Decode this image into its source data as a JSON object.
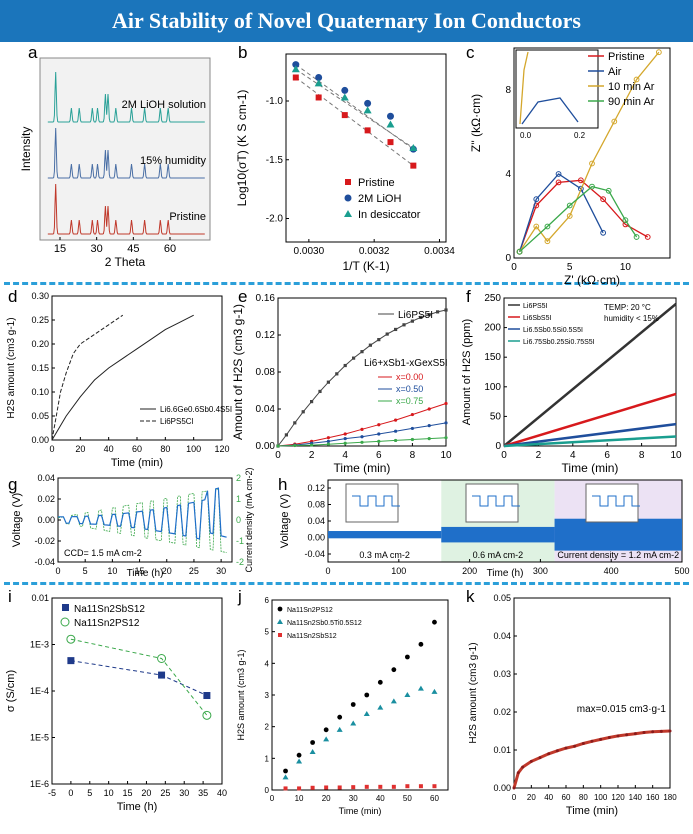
{
  "title": "Air Stability of Novel Quaternary Ion Conductors",
  "colors": {
    "banner": "#1b75bb",
    "divider": "#2b9fd9",
    "red": "#d7191c",
    "blue": "#1f4e9c",
    "teal": "#1a9e8f",
    "green": "#3aa84a",
    "gray": "#333333"
  },
  "panels": {
    "a": {
      "label": "a",
      "traces": [
        "2M LiOH solution",
        "15% humidity",
        "Pristine"
      ],
      "ylabel": "Intensity",
      "xlabel": "2 Theta",
      "xticks": [
        "15",
        "30",
        "45",
        "60"
      ]
    },
    "b": {
      "label": "b",
      "ylabel": "Log10(σT) (K S cm-1)",
      "xlabel": "1/T (K-1)",
      "xticks": [
        "0.0030",
        "0.0032",
        "0.0034"
      ],
      "yticks": [
        "-1.0",
        "-1.5",
        "-2.0"
      ],
      "legend": [
        "Pristine",
        "2M LiOH",
        "In desiccator"
      ]
    },
    "c": {
      "label": "c",
      "ylabel": "Z'' (kΩ·cm)",
      "xlabel": "Z' (kΩ·cm)",
      "xticks": [
        "0",
        "5",
        "10"
      ],
      "yticks": [
        "0",
        "4",
        "8"
      ],
      "legend": [
        "Pristine",
        "Air",
        "10 min Ar",
        "90 min Ar"
      ],
      "inset_ticks": [
        "0.0",
        "0.2"
      ]
    },
    "d": {
      "label": "d",
      "ylabel": "H2S amount (cm3 g-1)",
      "xlabel": "Time (min)",
      "xticks": [
        "0",
        "20",
        "40",
        "60",
        "80",
        "100",
        "120"
      ],
      "yticks": [
        "0.00",
        "0.05",
        "0.10",
        "0.15",
        "0.20",
        "0.25",
        "0.30"
      ],
      "legend": [
        "Li6.6Ge0.6Sb0.4S5I",
        "Li6PS5Cl"
      ]
    },
    "e": {
      "label": "e",
      "ylabel": "Amount of H2S (cm3 g-1)",
      "xlabel": "Time (min)",
      "xticks": [
        "0",
        "2",
        "4",
        "6",
        "8",
        "10"
      ],
      "yticks": [
        "0.00",
        "0.04",
        "0.08",
        "0.12",
        "0.16"
      ],
      "legend_top": "Li6PS5I",
      "legend_head": "Li6+xSb1-xGexS5I",
      "legend": [
        "x=0.00",
        "x=0.50",
        "x=0.75"
      ]
    },
    "f": {
      "label": "f",
      "ylabel": "Amount of H2S (ppm)",
      "xlabel": "Time (min)",
      "xticks": [
        "0",
        "2",
        "4",
        "6",
        "8",
        "10"
      ],
      "yticks": [
        "0",
        "50",
        "100",
        "150",
        "200",
        "250"
      ],
      "legend": [
        "Li6PS5I",
        "Li6SbS5I",
        "Li6.5Sb0.5Si0.5S5I",
        "Li6.75Sb0.25Si0.75S5I"
      ],
      "note1": "TEMP: 20 °C",
      "note2": "humidity < 15%"
    },
    "g": {
      "label": "g",
      "ylabel": "Voltage (V)",
      "y2label": "Current density (mA cm-2)",
      "xlabel": "Time (h)",
      "xticks": [
        "0",
        "5",
        "10",
        "15",
        "20",
        "25",
        "30"
      ],
      "yticks": [
        "0.04",
        "0.02",
        "0.00",
        "-0.02",
        "-0.04"
      ],
      "y2ticks": [
        "2",
        "1",
        "0",
        "-1",
        "-2"
      ],
      "ccd": "CCD= 1.5 mA cm-2"
    },
    "h": {
      "label": "h",
      "ylabel": "Voltage (V)",
      "xlabel": "Time (h)",
      "xticks": [
        "0",
        "100",
        "200",
        "300",
        "400",
        "500"
      ],
      "yticks": [
        "0.12",
        "0.08",
        "0.04",
        "0.00",
        "-0.04"
      ],
      "regions": [
        "0.3 mA cm-2",
        "0.6 mA cm-2",
        "Current density = 1.2 mA cm-2"
      ]
    },
    "i": {
      "label": "i",
      "ylabel": "σ (S/cm)",
      "xlabel": "Time (h)",
      "xticks": [
        "-5",
        "0",
        "5",
        "10",
        "15",
        "20",
        "25",
        "30",
        "35",
        "40"
      ],
      "yticks": [
        "0.01",
        "1E-3",
        "1E-4",
        "1E-5",
        "1E-6"
      ],
      "legend": [
        "Na11Sn2SbS12",
        "Na11Sn2PS12"
      ]
    },
    "j": {
      "label": "j",
      "ylabel": "H2S amount (cm3 g-1)",
      "xlabel": "Time (min)",
      "xticks": [
        "0",
        "10",
        "20",
        "30",
        "40",
        "50",
        "60"
      ],
      "yticks": [
        "0",
        "1",
        "2",
        "3",
        "4",
        "5",
        "6"
      ],
      "legend": [
        "Na11Sn2PS12",
        "Na11Sn2Sb0.5Ti0.5S12",
        "Na11Sn2SbS12"
      ]
    },
    "k": {
      "label": "k",
      "ylabel": "H2S amount (cm3 g-1)",
      "xlabel": "Time (min)",
      "xticks": [
        "0",
        "20",
        "40",
        "60",
        "80",
        "100",
        "120",
        "140",
        "160",
        "180"
      ],
      "yticks": [
        "0.00",
        "0.01",
        "0.02",
        "0.03",
        "0.04",
        "0.05"
      ],
      "note": "max=0.015 cm3·g-1"
    }
  },
  "chart_data": [
    {
      "type": "line",
      "panel": "a",
      "x": [
        5,
        70
      ],
      "series": [
        {
          "name": "2M LiOH solution",
          "peaks": [
            11,
            17,
            20,
            25,
            27,
            30,
            31,
            34,
            40,
            45,
            51,
            54
          ]
        },
        {
          "name": "15% humidity",
          "peaks": [
            11,
            17,
            20,
            25,
            27,
            30,
            31,
            34,
            40,
            45,
            51,
            54
          ]
        },
        {
          "name": "Pristine",
          "peaks": [
            11,
            17,
            20,
            25,
            27,
            30,
            31,
            34,
            40,
            45,
            51,
            54
          ]
        }
      ]
    },
    {
      "type": "scatter",
      "panel": "b",
      "xlim": [
        0.00293,
        0.00342
      ],
      "ylim": [
        -2.2,
        -0.6
      ],
      "series": [
        {
          "name": "Pristine",
          "x": [
            0.00296,
            0.00303,
            0.00311,
            0.00318,
            0.00325,
            0.00332
          ],
          "y": [
            -0.8,
            -0.97,
            -1.12,
            -1.25,
            -1.35,
            -1.55
          ]
        },
        {
          "name": "2M LiOH",
          "x": [
            0.00296,
            0.00303,
            0.00311,
            0.00318,
            0.00325,
            0.00332
          ],
          "y": [
            -0.69,
            -0.8,
            -0.91,
            -1.02,
            -1.13,
            -1.41
          ]
        },
        {
          "name": "In desiccator",
          "x": [
            0.00296,
            0.00303,
            0.00311,
            0.00318,
            0.00325,
            0.00332
          ],
          "y": [
            -0.73,
            -0.85,
            -0.97,
            -1.08,
            -1.2,
            -1.4
          ]
        }
      ]
    },
    {
      "type": "scatter",
      "panel": "c",
      "xlim": [
        0,
        14
      ],
      "ylim": [
        0,
        10
      ],
      "series": [
        {
          "name": "Pristine",
          "x": [
            0.5,
            2,
            4,
            6,
            8,
            10,
            12
          ],
          "y": [
            0.3,
            2.5,
            3.6,
            3.7,
            2.8,
            1.6,
            1.0
          ]
        },
        {
          "name": "Air",
          "x": [
            0.5,
            2,
            4,
            6,
            8
          ],
          "y": [
            0.3,
            2.8,
            4.0,
            3.3,
            1.2
          ]
        },
        {
          "name": "10 min Ar",
          "x": [
            0.5,
            2,
            3,
            5,
            7,
            9,
            11,
            13
          ],
          "y": [
            0.3,
            1.5,
            0.8,
            2.0,
            4.5,
            6.5,
            8.5,
            9.8
          ]
        },
        {
          "name": "90 min Ar",
          "x": [
            0.5,
            3,
            5,
            7,
            8.5,
            10,
            11
          ],
          "y": [
            0.3,
            1.5,
            2.5,
            3.4,
            3.2,
            1.8,
            1.0
          ]
        }
      ]
    },
    {
      "type": "line",
      "panel": "d",
      "xlim": [
        0,
        120
      ],
      "ylim": [
        0,
        0.3
      ],
      "series": [
        {
          "name": "Li6.6Ge0.6Sb0.4S5I",
          "x": [
            0,
            5,
            10,
            20,
            30,
            40,
            50,
            60,
            70,
            80,
            90,
            100
          ],
          "y": [
            0,
            0.025,
            0.05,
            0.09,
            0.125,
            0.15,
            0.17,
            0.19,
            0.21,
            0.23,
            0.245,
            0.26
          ]
        },
        {
          "name": "Li6PS5Cl",
          "x": [
            0,
            3,
            6,
            10,
            15,
            20,
            25,
            30,
            40,
            50
          ],
          "y": [
            0,
            0.05,
            0.1,
            0.14,
            0.18,
            0.2,
            0.21,
            0.22,
            0.24,
            0.26
          ]
        }
      ]
    },
    {
      "type": "line",
      "panel": "e",
      "xlim": [
        0,
        10
      ],
      "ylim": [
        0,
        0.16
      ],
      "series": [
        {
          "name": "Li6PS5I",
          "x": [
            0,
            0.5,
            1,
            1.5,
            2,
            2.5,
            3,
            3.5,
            4,
            4.5,
            5,
            5.5,
            6,
            6.5,
            7,
            7.5,
            8,
            8.5,
            9,
            9.5,
            10
          ],
          "y": [
            0,
            0.012,
            0.025,
            0.037,
            0.048,
            0.059,
            0.069,
            0.078,
            0.087,
            0.095,
            0.102,
            0.109,
            0.115,
            0.121,
            0.126,
            0.131,
            0.135,
            0.139,
            0.142,
            0.145,
            0.147
          ]
        },
        {
          "name": "x=0.00",
          "x": [
            0,
            1,
            2,
            3,
            4,
            5,
            6,
            7,
            8,
            9,
            10
          ],
          "y": [
            0,
            0.002,
            0.005,
            0.009,
            0.013,
            0.018,
            0.023,
            0.028,
            0.034,
            0.04,
            0.046
          ]
        },
        {
          "name": "x=0.50",
          "x": [
            0,
            1,
            2,
            3,
            4,
            5,
            6,
            7,
            8,
            9,
            10
          ],
          "y": [
            0,
            0.001,
            0.003,
            0.005,
            0.008,
            0.01,
            0.013,
            0.016,
            0.019,
            0.022,
            0.025
          ]
        },
        {
          "name": "x=0.75",
          "x": [
            0,
            1,
            2,
            3,
            4,
            5,
            6,
            7,
            8,
            9,
            10
          ],
          "y": [
            0,
            0.0005,
            0.001,
            0.002,
            0.003,
            0.004,
            0.005,
            0.006,
            0.007,
            0.008,
            0.009
          ]
        }
      ]
    },
    {
      "type": "line",
      "panel": "f",
      "xlim": [
        0,
        10
      ],
      "ylim": [
        0,
        250
      ],
      "series": [
        {
          "name": "Li6PS5I",
          "x": [
            0,
            10
          ],
          "y": [
            0,
            240
          ]
        },
        {
          "name": "Li6SbS5I",
          "x": [
            0,
            10
          ],
          "y": [
            0,
            88
          ]
        },
        {
          "name": "Li6.5Sb0.5Si0.5S5I",
          "x": [
            0,
            10
          ],
          "y": [
            0,
            37
          ]
        },
        {
          "name": "Li6.75Sb0.25Si0.75S5I",
          "x": [
            0,
            10
          ],
          "y": [
            0,
            16
          ]
        }
      ]
    },
    {
      "type": "line",
      "panel": "g",
      "xlim": [
        0,
        32
      ],
      "ylim": [
        -0.04,
        0.04
      ],
      "y2lim": [
        -2,
        2
      ],
      "series": [
        {
          "name": "Voltage",
          "x": [
            0,
            4,
            8,
            12,
            16,
            20,
            24,
            26,
            28,
            29,
            30,
            31
          ],
          "amplitude": [
            0.003,
            0.005,
            0.006,
            0.008,
            0.01,
            0.013,
            0.016,
            0.018,
            0.022,
            0.026,
            0.02,
            0.012
          ]
        },
        {
          "name": "Current density",
          "x": [
            0,
            5,
            10,
            15,
            20,
            25,
            30
          ],
          "amplitude": [
            0.1,
            0.3,
            0.5,
            0.7,
            0.9,
            1.1,
            1.5
          ]
        }
      ]
    },
    {
      "type": "line",
      "panel": "h",
      "xlim": [
        0,
        500
      ],
      "ylim": [
        -0.06,
        0.12
      ],
      "series": [
        {
          "name": "0.3 mA cm-2",
          "x": [
            0,
            160
          ],
          "amplitude": 0.008
        },
        {
          "name": "0.6 mA cm-2",
          "x": [
            160,
            320
          ],
          "amplitude": 0.017
        },
        {
          "name": "1.2 mA cm-2",
          "x": [
            320,
            500
          ],
          "amplitude": 0.035
        }
      ]
    },
    {
      "type": "line",
      "panel": "i",
      "xlim": [
        -5,
        40
      ],
      "ylim_log": [
        -6,
        -2
      ],
      "series": [
        {
          "name": "Na11Sn2SbS12",
          "x": [
            0,
            24,
            36
          ],
          "y": [
            0.00045,
            0.00022,
            8e-05
          ]
        },
        {
          "name": "Na11Sn2PS12",
          "x": [
            0,
            24,
            36
          ],
          "y": [
            0.0013,
            0.0005,
            3e-05
          ]
        }
      ]
    },
    {
      "type": "scatter",
      "panel": "j",
      "xlim": [
        0,
        65
      ],
      "ylim": [
        0,
        6
      ],
      "series": [
        {
          "name": "Na11Sn2PS12",
          "x": [
            5,
            10,
            15,
            20,
            25,
            30,
            35,
            40,
            45,
            50,
            55,
            60
          ],
          "y": [
            0.6,
            1.1,
            1.5,
            1.9,
            2.3,
            2.7,
            3.0,
            3.4,
            3.8,
            4.2,
            4.6,
            5.3
          ]
        },
        {
          "name": "Na11Sn2Sb0.5Ti0.5S12",
          "x": [
            5,
            10,
            15,
            20,
            25,
            30,
            35,
            40,
            45,
            50,
            55,
            60
          ],
          "y": [
            0.4,
            0.9,
            1.2,
            1.6,
            1.9,
            2.1,
            2.4,
            2.6,
            2.8,
            3.0,
            3.2,
            3.1
          ]
        },
        {
          "name": "Na11Sn2SbS12",
          "x": [
            5,
            10,
            15,
            20,
            25,
            30,
            35,
            40,
            45,
            50,
            55,
            60
          ],
          "y": [
            0.05,
            0.05,
            0.07,
            0.08,
            0.08,
            0.09,
            0.1,
            0.1,
            0.1,
            0.12,
            0.12,
            0.12
          ]
        }
      ]
    },
    {
      "type": "scatter",
      "panel": "k",
      "xlim": [
        0,
        180
      ],
      "ylim": [
        0,
        0.05
      ],
      "series": [
        {
          "name": "H2S",
          "x": [
            0,
            5,
            10,
            20,
            30,
            40,
            50,
            60,
            70,
            80,
            90,
            100,
            110,
            120,
            130,
            140,
            150,
            160,
            170,
            180
          ],
          "y": [
            0,
            0.004,
            0.0055,
            0.007,
            0.008,
            0.009,
            0.0098,
            0.0105,
            0.011,
            0.0117,
            0.0123,
            0.0128,
            0.0133,
            0.0137,
            0.014,
            0.0143,
            0.0146,
            0.0148,
            0.0149,
            0.015
          ]
        }
      ]
    }
  ]
}
